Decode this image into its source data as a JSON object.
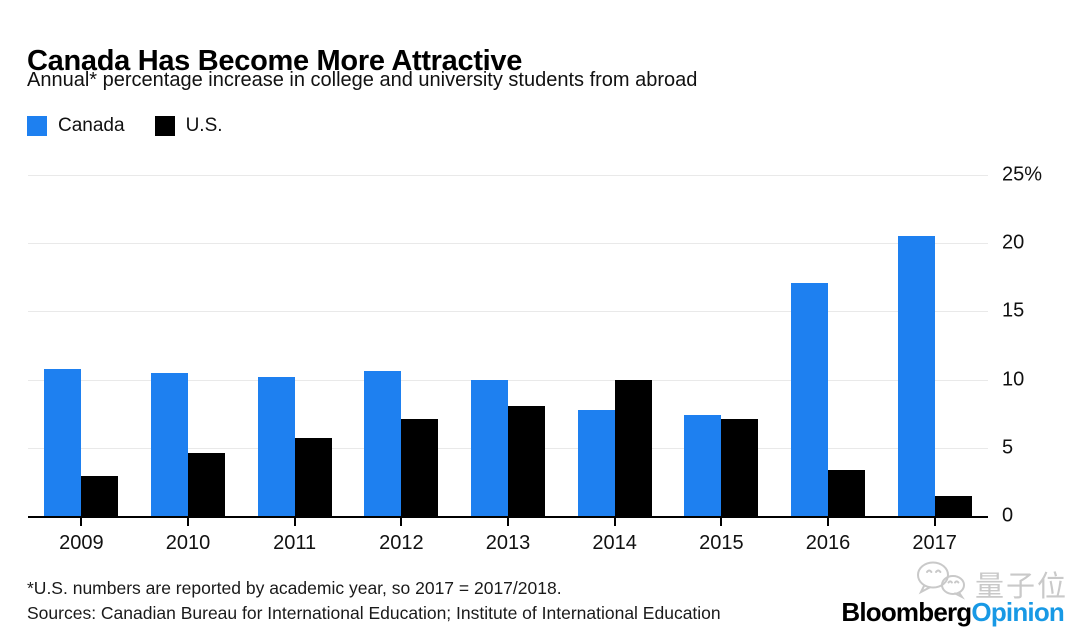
{
  "header": {
    "title": "Canada Has Become More Attractive",
    "subtitle": "Annual* percentage increase in college and university students from abroad"
  },
  "legend": [
    {
      "label": "Canada",
      "color": "#1e80f0"
    },
    {
      "label": "U.S.",
      "color": "#000000"
    }
  ],
  "chart_data": {
    "type": "bar",
    "title": "Canada Has Become More Attractive",
    "subtitle": "Annual* percentage increase in college and university students from abroad",
    "categories": [
      "2009",
      "2010",
      "2011",
      "2012",
      "2013",
      "2014",
      "2015",
      "2016",
      "2017"
    ],
    "series": [
      {
        "name": "Canada",
        "color": "#1e80f0",
        "values": [
          10.8,
          10.5,
          10.2,
          10.6,
          10.0,
          7.8,
          7.4,
          17.1,
          20.5
        ]
      },
      {
        "name": "U.S.",
        "color": "#000000",
        "values": [
          2.9,
          4.6,
          5.7,
          7.1,
          8.1,
          10.0,
          7.1,
          3.4,
          1.5
        ]
      }
    ],
    "xlabel": "",
    "ylabel": "",
    "ylim": [
      0,
      25
    ],
    "yticks": [
      0,
      5,
      10,
      15,
      20,
      25
    ],
    "ytick_labels": [
      "0",
      "5",
      "10",
      "15",
      "20",
      "25%"
    ],
    "grid": true,
    "legend_position": "top-left",
    "y_axis_side": "right"
  },
  "footer": {
    "footnote": "*U.S. numbers are reported by academic year, so 2017 = 2017/2018.",
    "sources": "Sources: Canadian Bureau for International Education; Institute of International Education",
    "logo": {
      "part1": "Bloomberg",
      "part2": "Opinion",
      "part2_color": "#1899e5"
    },
    "watermark": {
      "text": "量子位",
      "icon": "wechat-bubbles-icon"
    }
  }
}
